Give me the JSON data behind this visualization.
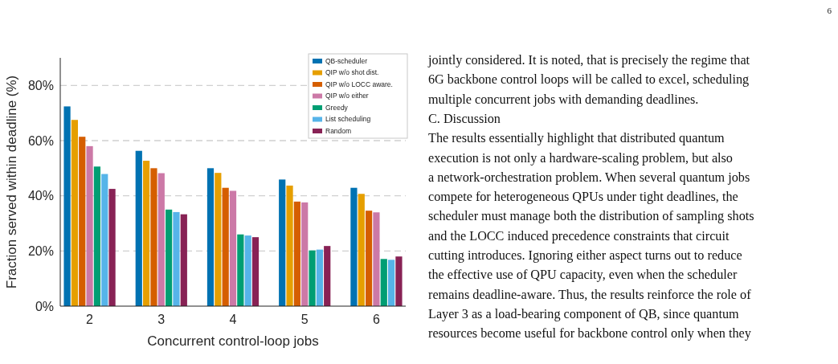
{
  "chart_data": {
    "type": "bar",
    "xlabel": "Concurrent control-loop jobs",
    "ylabel": "Fraction served within deadline (%)",
    "categories": [
      "2",
      "3",
      "4",
      "5",
      "6"
    ],
    "series": [
      {
        "name": "QB-scheduler",
        "color": "#0072b2",
        "values": [
          72.4,
          56.3,
          50.0,
          45.9,
          42.9
        ]
      },
      {
        "name": "QIP w/o shot dist.",
        "color": "#e69f00",
        "values": [
          67.5,
          52.7,
          48.3,
          43.7,
          40.7
        ]
      },
      {
        "name": "QIP w/o LOCC aware.",
        "color": "#d55e00",
        "values": [
          61.4,
          50.0,
          42.9,
          37.9,
          34.6
        ]
      },
      {
        "name": "QIP w/o either",
        "color": "#cc79a7",
        "values": [
          58.0,
          48.2,
          41.8,
          37.6,
          34.0
        ]
      },
      {
        "name": "Greedy",
        "color": "#009e73",
        "values": [
          50.6,
          35.0,
          26.0,
          20.2,
          17.1
        ]
      },
      {
        "name": "List scheduling",
        "color": "#56b4e9",
        "values": [
          47.9,
          34.1,
          25.6,
          20.5,
          16.8
        ]
      },
      {
        "name": "Random",
        "color": "#882255",
        "values": [
          42.5,
          33.3,
          25.0,
          21.8,
          18.0
        ]
      }
    ],
    "ylim": [
      0,
      90
    ],
    "yticks": [
      {
        "value": 0,
        "label": "0%"
      },
      {
        "value": 20,
        "label": "20%"
      },
      {
        "value": 40,
        "label": "40%"
      },
      {
        "value": 60,
        "label": "60%"
      },
      {
        "value": 80,
        "label": "80%"
      }
    ],
    "grid": "y",
    "legend": "top right",
    "annotations": [
      "6",
      "jointly considered. It is noted, that is precisely the regime that",
      "6G backbone control loops will be called to excel, scheduling",
      "multiple concurrent jobs with demanding deadlines.",
      "C.  Discussion",
      "The results essentially highlight that distributed quantum",
      "execution is not only a hardware-scaling problem, but also",
      "a network-orchestration problem. When several quantum jobs",
      "compete for heterogeneous QPUs under tight deadlines, the",
      "scheduler must manage both the distribution of sampling shots",
      "and the LOCC induced precedence constraints that circuit",
      "cutting introduces. Ignoring either aspect turns out to reduce",
      "the effective use of QPU capacity, even when the scheduler",
      "remains deadline-aware. Thus, the results reinforce the role of",
      "Layer 3 as a load-bearing component of QB, since quantum",
      "resources become useful for backbone control only when they"
    ]
  }
}
